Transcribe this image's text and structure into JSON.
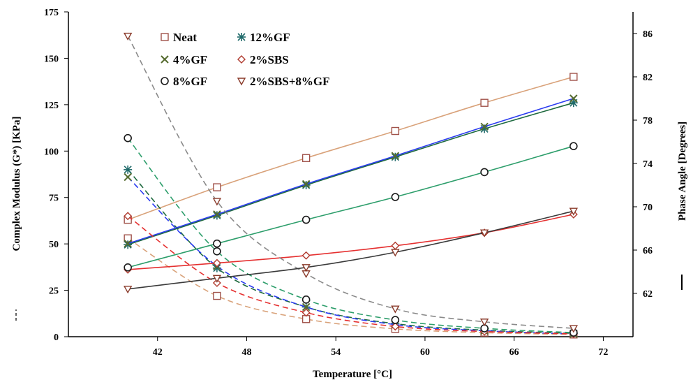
{
  "chart_data": {
    "type": "line",
    "xlabel": "Temperature [°C]",
    "ylabel_left": "Complex Modulus (G*) [KPa]",
    "ylabel_right": "Phase Angle [Degrees]",
    "xlim": [
      36,
      74
    ],
    "ylim_left": [
      0,
      175
    ],
    "ylim_right": [
      58,
      88
    ],
    "x_ticks": [
      "42",
      "48",
      "54",
      "60",
      "66",
      "72"
    ],
    "y_left_ticks": [
      "0",
      "25",
      "50",
      "75",
      "100",
      "125",
      "150",
      "175"
    ],
    "y_right_ticks": [
      "62",
      "66",
      "70",
      "74",
      "78",
      "82",
      "86"
    ],
    "legend": {
      "placement": "top-left",
      "entries": [
        {
          "label": "Neat",
          "marker": "square"
        },
        {
          "label": "12%GF",
          "marker": "asterisk"
        },
        {
          "label": "4%GF",
          "marker": "x"
        },
        {
          "label": "2%SBS",
          "marker": "diamond"
        },
        {
          "label": "8%GF",
          "marker": "circle"
        },
        {
          "label": "2%SBS+8%GF",
          "marker": "triangle-down"
        }
      ]
    },
    "x": [
      40,
      46,
      52,
      58,
      64,
      70
    ],
    "series": [
      {
        "name": "Neat",
        "marker": "square",
        "modulus_color": "#d9a27a",
        "phase_color": "#d9a27a",
        "modulus": [
          53,
          22,
          9.5,
          4.2,
          2.2,
          1.2
        ],
        "phase": [
          68.8,
          71.8,
          74.5,
          77.0,
          79.6,
          82.0
        ]
      },
      {
        "name": "12%GF",
        "marker": "asterisk",
        "modulus_color": "#1f6a3f",
        "phase_color": "#1f6a3f",
        "modulus": [
          90,
          37,
          16,
          7,
          3.5,
          1.8
        ],
        "phase": [
          66.5,
          69.2,
          72.0,
          74.6,
          77.2,
          79.6
        ]
      },
      {
        "name": "4%GF",
        "marker": "x",
        "modulus_color": "#2b3cf0",
        "phase_color": "#2b3cf0",
        "modulus": [
          86,
          38,
          16,
          6.5,
          3.2,
          1.5
        ],
        "phase": [
          66.6,
          69.3,
          72.1,
          74.7,
          77.4,
          80.0
        ]
      },
      {
        "name": "2%SBS",
        "marker": "diamond",
        "modulus_color": "#e53030",
        "phase_color": "#e53030",
        "modulus": [
          65,
          29,
          13,
          5.5,
          2.8,
          1.5
        ],
        "phase": [
          64.2,
          64.8,
          65.5,
          66.4,
          67.6,
          69.3
        ]
      },
      {
        "name": "8%GF",
        "marker": "circle",
        "modulus_color": "#2d9e6b",
        "phase_color": "#2d9e6b",
        "modulus": [
          107,
          46,
          20,
          9,
          4.5,
          2.2
        ],
        "phase": [
          64.4,
          66.6,
          68.8,
          70.9,
          73.2,
          75.6
        ]
      },
      {
        "name": "2%SBS+8%GF",
        "marker": "triangle-down",
        "modulus_color": "#8a8a8a",
        "phase_color": "#3a3a3a",
        "modulus": [
          162,
          73,
          34,
          15,
          8,
          4.5
        ],
        "phase": [
          62.4,
          63.4,
          64.4,
          65.8,
          67.6,
          69.6
        ]
      }
    ]
  }
}
